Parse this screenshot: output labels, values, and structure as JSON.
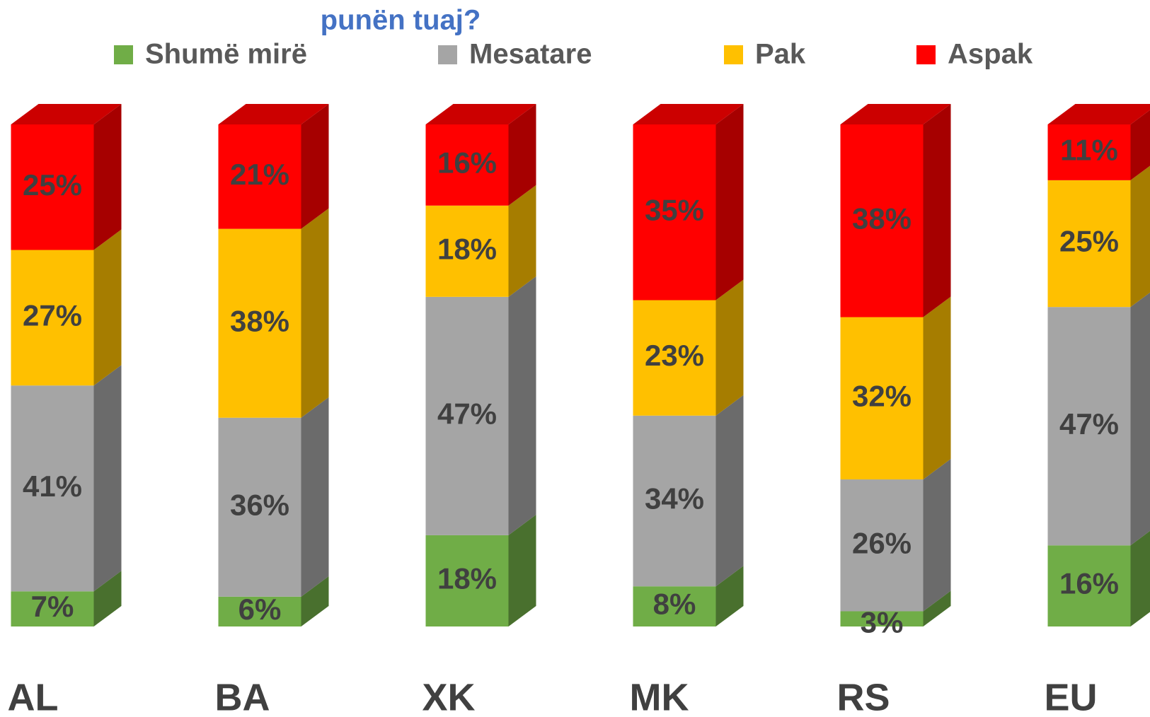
{
  "chart_data": {
    "type": "bar",
    "stacked": true,
    "title": "punën tuaj?",
    "categories": [
      "AL",
      "BA",
      "XK",
      "MK",
      "RS",
      "EU"
    ],
    "series": [
      {
        "name": "Shumë mirë",
        "color": "#70ad47",
        "values": [
          7,
          6,
          18,
          8,
          3,
          16
        ],
        "value_labels": [
          "7%",
          "6%",
          "18%",
          "8%",
          "3%",
          "16%"
        ]
      },
      {
        "name": "Mesatare",
        "color": "#a5a5a5",
        "values": [
          41,
          36,
          47,
          34,
          26,
          47
        ],
        "value_labels": [
          "41%",
          "36%",
          "47%",
          "34%",
          "26%",
          "47%"
        ]
      },
      {
        "name": "Pak",
        "color": "#ffc000",
        "values": [
          27,
          38,
          18,
          23,
          32,
          25
        ],
        "value_labels": [
          "27%",
          "38%",
          "18%",
          "23%",
          "32%",
          "25%"
        ]
      },
      {
        "name": "Aspak",
        "color": "#ff0000",
        "values": [
          25,
          21,
          16,
          35,
          38,
          11
        ],
        "value_labels": [
          "25%",
          "21%",
          "16%",
          "35%",
          "38%",
          "11%"
        ]
      }
    ],
    "legend": "top"
  }
}
